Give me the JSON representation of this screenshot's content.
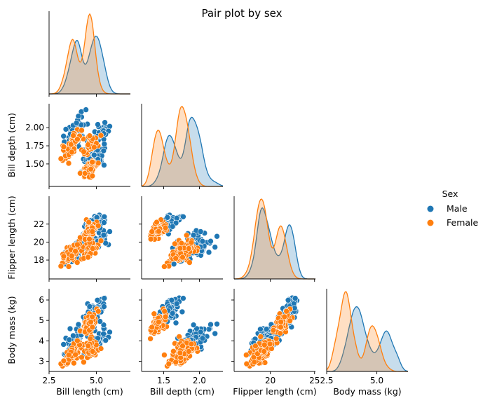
{
  "chart_data": {
    "type": "scatter",
    "title": "Pair plot by sex",
    "variables": [
      {
        "key": "bill_length",
        "label": "Bill length (cm)",
        "lim": [
          2.5,
          6.8
        ],
        "ticks": [
          2.5,
          5.0
        ],
        "tick_labels": [
          "2.5",
          "5.0"
        ]
      },
      {
        "key": "bill_depth",
        "label": "Bill depth (cm)",
        "lim": [
          1.19,
          2.33
        ],
        "ticks": [
          1.5,
          1.75,
          2.0
        ],
        "tick_labels": [
          "1.50",
          "1.75",
          "2.00"
        ],
        "diag_tick_labels": [
          "1.5",
          "2.0"
        ],
        "diag_ticks": [
          1.5,
          2.0
        ]
      },
      {
        "key": "flipper_length",
        "label": "Flipper length (cm)",
        "lim": [
          15.9,
          25.1
        ],
        "ticks": [
          18,
          20,
          22
        ],
        "tick_labels": [
          "18",
          "20",
          "22"
        ],
        "diag_ticks": [
          20,
          25
        ],
        "diag_tick_labels": [
          "20",
          "25"
        ]
      },
      {
        "key": "body_mass",
        "label": "Body mass (kg)",
        "lim": [
          2.5,
          6.55
        ],
        "ticks": [
          3,
          4,
          5,
          6
        ],
        "tick_labels": [
          "3",
          "4",
          "5",
          "6"
        ],
        "diag_ticks": [
          2.5,
          5.0
        ],
        "diag_tick_labels": [
          "2.5",
          "5.0"
        ]
      }
    ],
    "legend": {
      "title": "Sex",
      "placement": "right",
      "entries": [
        {
          "name": "Male",
          "color": "#1f77b4"
        },
        {
          "name": "Female",
          "color": "#ff7f0e"
        }
      ]
    },
    "series": [
      {
        "name": "Male",
        "color": "#1f77b4",
        "clusters": [
          {
            "n": 70,
            "mean": [
              3.95,
              1.95,
              19.2,
              4.05
            ],
            "sd": [
              0.25,
              0.1,
              0.6,
              0.35
            ]
          },
          {
            "n": 35,
            "mean": [
              5.05,
              1.88,
              19.9,
              3.95
            ],
            "sd": [
              0.3,
              0.09,
              0.6,
              0.35
            ]
          },
          {
            "n": 60,
            "mean": [
              4.9,
              1.57,
              22.2,
              5.45
            ],
            "sd": [
              0.3,
              0.08,
              0.55,
              0.35
            ]
          }
        ]
      },
      {
        "name": "Female",
        "color": "#ff7f0e",
        "clusters": [
          {
            "n": 70,
            "mean": [
              3.7,
              1.76,
              18.8,
              3.35
            ],
            "sd": [
              0.2,
              0.09,
              0.55,
              0.25
            ]
          },
          {
            "n": 35,
            "mean": [
              4.7,
              1.76,
              19.2,
              3.55
            ],
            "sd": [
              0.25,
              0.09,
              0.6,
              0.3
            ]
          },
          {
            "n": 58,
            "mean": [
              4.6,
              1.42,
              21.2,
              4.7
            ],
            "sd": [
              0.22,
              0.06,
              0.45,
              0.3
            ]
          }
        ]
      }
    ]
  }
}
